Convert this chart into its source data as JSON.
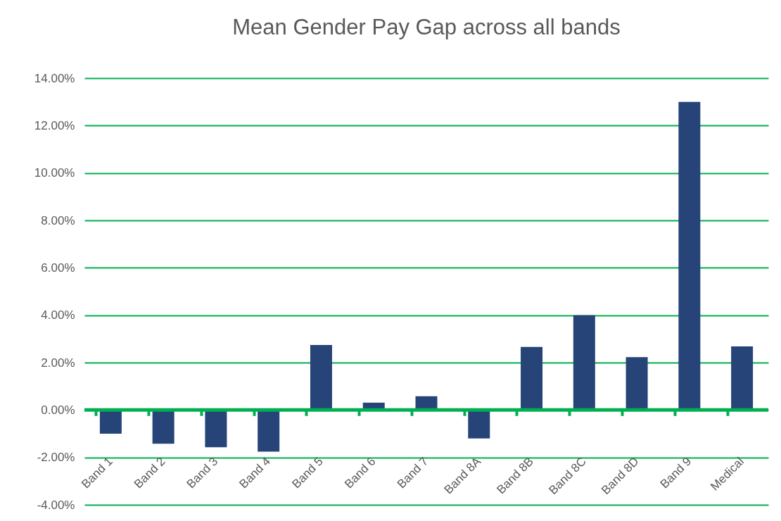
{
  "chart_data": {
    "type": "bar",
    "title": "Mean Gender Pay Gap across all bands",
    "categories": [
      "Band 1",
      "Band 2",
      "Band 3",
      "Band 4",
      "Band 5",
      "Band 6",
      "Band 7",
      "Band 8A",
      "Band 8B",
      "Band 8C",
      "Band 8D",
      "Band 9",
      "Medical"
    ],
    "values": [
      -1.0,
      -1.42,
      -1.57,
      -1.76,
      2.74,
      0.31,
      0.58,
      -1.2,
      2.66,
      4.0,
      2.23,
      13.0,
      2.68
    ],
    "color": "#264478",
    "ylim": [
      -4,
      14
    ],
    "yticks": [
      {
        "value": -4,
        "label": "-4.00%"
      },
      {
        "value": -2,
        "label": "-2.00%"
      },
      {
        "value": 0,
        "label": "0.00%"
      },
      {
        "value": 2,
        "label": "2.00%"
      },
      {
        "value": 4,
        "label": "4.00%"
      },
      {
        "value": 6,
        "label": "6.00%"
      },
      {
        "value": 8,
        "label": "8.00%"
      },
      {
        "value": 10,
        "label": "10.00%"
      },
      {
        "value": 12,
        "label": "12.00%"
      },
      {
        "value": 14,
        "label": "14.00%"
      }
    ],
    "grid": "y",
    "ref_lines": [
      {
        "axis": "y",
        "value": 0,
        "color": "#00b050"
      }
    ]
  }
}
